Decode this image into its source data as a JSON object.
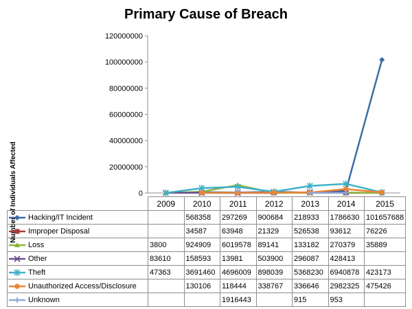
{
  "chart_data": {
    "type": "line",
    "title": "Primary Cause of Breach",
    "ylabel": "Number of Individuals  Affected",
    "xlabel": "",
    "ylim": [
      0,
      120000000
    ],
    "yticks": [
      "0",
      "20000000",
      "40000000",
      "60000000",
      "80000000",
      "100000000",
      "120000000"
    ],
    "categories": [
      "2009",
      "2010",
      "2011",
      "2012",
      "2013",
      "2014",
      "2015"
    ],
    "grid": "horizontal-none",
    "legend": "data-table-below",
    "series": [
      {
        "name": "Hacking/IT Incident",
        "color": "#3a6ea5",
        "marker": "diamond",
        "values": [
          null,
          568358,
          297269,
          900684,
          218933,
          1786630,
          101657688
        ],
        "labels": [
          "",
          "568358",
          "297269",
          "900684",
          "218933",
          "1786630",
          "101657688"
        ]
      },
      {
        "name": "Improper Disposal",
        "color": "#a63c3c",
        "marker": "square",
        "values": [
          null,
          34587,
          63948,
          21329,
          526538,
          93612,
          76226
        ],
        "labels": [
          "",
          "34587",
          "63948",
          "21329",
          "526538",
          "93612",
          "76226"
        ]
      },
      {
        "name": "Loss",
        "color": "#8db43a",
        "marker": "triangle",
        "values": [
          3800,
          924909,
          6019578,
          89141,
          133182,
          270379,
          35889
        ],
        "labels": [
          "3800",
          "924909",
          "6019578",
          "89141",
          "133182",
          "270379",
          "35889"
        ]
      },
      {
        "name": "Other",
        "color": "#6b4f8c",
        "marker": "x",
        "values": [
          83610,
          158593,
          13981,
          503900,
          296087,
          428413,
          null
        ],
        "labels": [
          "83610",
          "158593",
          "13981",
          "503900",
          "296087",
          "428413",
          ""
        ]
      },
      {
        "name": "Theft",
        "color": "#3fb1c8",
        "marker": "star",
        "values": [
          47363,
          3691460,
          4696009,
          898039,
          5368230,
          6940878,
          423173
        ],
        "labels": [
          "47363",
          "3691460",
          "4696009",
          "898039",
          "5368230",
          "6940878",
          "423173"
        ]
      },
      {
        "name": "Unauthorized Access/Disclosure",
        "color": "#e8863a",
        "marker": "circle",
        "values": [
          null,
          130106,
          118444,
          338767,
          336646,
          2982325,
          475426
        ],
        "labels": [
          "",
          "130106",
          "118444",
          "338767",
          "336646",
          "2982325",
          "475426"
        ]
      },
      {
        "name": "Unknown",
        "color": "#8fa8d8",
        "marker": "plus",
        "values": [
          null,
          null,
          1916443,
          null,
          915,
          953,
          null
        ],
        "labels": [
          "",
          "",
          "1916443",
          "",
          "915",
          "953",
          ""
        ]
      }
    ]
  }
}
